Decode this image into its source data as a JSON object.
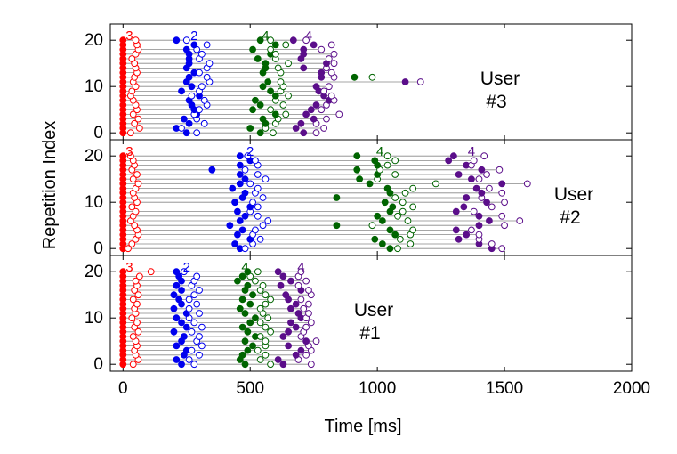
{
  "chart_data": {
    "type": "scatter",
    "xlabel": "Time [ms]",
    "ylabel": "Repetition Index",
    "xlim": [
      -50,
      2000
    ],
    "xticks": [
      0,
      500,
      1000,
      1500,
      2000
    ],
    "ylim": [
      -1.5,
      23.5
    ],
    "yticks": [
      0,
      10,
      20
    ],
    "grid": false,
    "stage_colors": {
      "3": "#ff0000",
      "2": "#0000ee",
      "4": "#006400",
      "4b": "#5b0e8a"
    },
    "panels": [
      {
        "user": "User\n#3",
        "user_lines": [
          "User",
          "#3"
        ],
        "stage_labels": [
          {
            "text": "3",
            "x": 25,
            "color": "#ff0000"
          },
          {
            "text": "2",
            "x": 280,
            "color": "#0000ee"
          },
          {
            "text": "4",
            "x": 560,
            "color": "#006400"
          },
          {
            "text": "4",
            "x": 730,
            "color": "#5b0e8a"
          }
        ],
        "stages": [
          "3",
          "2",
          "4",
          "4b"
        ],
        "rows": [
          [
            0,
            30,
            250,
            290,
            540,
            590,
            710,
            760
          ],
          [
            0,
            65,
            210,
            230,
            500,
            560,
            680,
            790
          ],
          [
            0,
            45,
            260,
            320,
            560,
            600,
            700,
            760
          ],
          [
            0,
            60,
            240,
            290,
            550,
            610,
            750,
            800
          ],
          [
            0,
            40,
            290,
            280,
            600,
            640,
            720,
            850
          ],
          [
            0,
            55,
            280,
            300,
            510,
            580,
            740,
            780
          ],
          [
            0,
            50,
            270,
            330,
            540,
            630,
            760,
            800
          ],
          [
            0,
            40,
            260,
            320,
            520,
            600,
            810,
            830
          ],
          [
            0,
            30,
            300,
            270,
            600,
            650,
            790,
            820
          ],
          [
            0,
            35,
            230,
            300,
            580,
            620,
            770,
            790
          ],
          [
            0,
            50,
            270,
            310,
            550,
            630,
            760,
            810
          ],
          [
            0,
            40,
            250,
            340,
            570,
            620,
            1110,
            1170
          ],
          [
            0,
            45,
            260,
            330,
            910,
            980,
            780,
            830
          ],
          [
            0,
            55,
            280,
            300,
            550,
            620,
            780,
            820
          ],
          [
            0,
            50,
            250,
            330,
            560,
            610,
            710,
            800
          ],
          [
            0,
            45,
            260,
            340,
            560,
            650,
            800,
            830
          ],
          [
            0,
            35,
            260,
            300,
            530,
            600,
            700,
            810
          ],
          [
            0,
            50,
            260,
            310,
            580,
            600,
            710,
            830
          ],
          [
            0,
            60,
            250,
            290,
            510,
            580,
            710,
            780
          ],
          [
            0,
            55,
            280,
            330,
            600,
            640,
            750,
            820
          ],
          [
            0,
            50,
            210,
            250,
            540,
            580,
            670,
            720
          ]
        ]
      },
      {
        "user": "User\n#2",
        "user_lines": [
          "User",
          "#2"
        ],
        "stage_labels": [
          {
            "text": "3",
            "x": 25,
            "color": "#ff0000"
          },
          {
            "text": "2",
            "x": 500,
            "color": "#0000ee"
          },
          {
            "text": "4",
            "x": 1010,
            "color": "#006400"
          },
          {
            "text": "4",
            "x": 1370,
            "color": "#5b0e8a"
          }
        ],
        "stages": [
          "3",
          "2",
          "4",
          "4b"
        ],
        "rows": [
          [
            0,
            20,
            460,
            480,
            1050,
            1080,
            1450,
            1490
          ],
          [
            0,
            35,
            440,
            510,
            1020,
            1130,
            1400,
            1450
          ],
          [
            0,
            50,
            500,
            540,
            990,
            1090,
            1320,
            1400
          ],
          [
            0,
            60,
            450,
            510,
            1070,
            1130,
            1350,
            1400
          ],
          [
            0,
            55,
            470,
            520,
            1050,
            1140,
            1310,
            1370
          ],
          [
            0,
            45,
            420,
            550,
            840,
            980,
            1400,
            1500
          ],
          [
            0,
            30,
            460,
            570,
            1020,
            1120,
            1440,
            1560
          ],
          [
            0,
            40,
            480,
            530,
            1000,
            1080,
            1400,
            1490
          ],
          [
            0,
            50,
            450,
            500,
            1050,
            1100,
            1310,
            1380
          ],
          [
            0,
            35,
            500,
            530,
            1060,
            1140,
            1340,
            1450
          ],
          [
            0,
            55,
            440,
            510,
            1030,
            1100,
            1430,
            1500
          ],
          [
            0,
            45,
            470,
            550,
            840,
            1070,
            1350,
            1410
          ],
          [
            0,
            40,
            480,
            520,
            1050,
            1110,
            1410,
            1490
          ],
          [
            0,
            50,
            430,
            530,
            1040,
            1140,
            1390,
            1440
          ],
          [
            0,
            60,
            460,
            500,
            970,
            1230,
            1490,
            1590
          ],
          [
            0,
            40,
            480,
            560,
            930,
            1000,
            1370,
            1400
          ],
          [
            0,
            55,
            460,
            530,
            1000,
            1070,
            1320,
            1430
          ],
          [
            0,
            35,
            350,
            480,
            920,
            1010,
            1410,
            1480
          ],
          [
            0,
            45,
            460,
            530,
            1000,
            1040,
            1350,
            1370
          ],
          [
            0,
            40,
            500,
            520,
            990,
            1070,
            1280,
            1380
          ],
          [
            0,
            30,
            460,
            490,
            920,
            1040,
            1300,
            1420
          ]
        ]
      },
      {
        "user": "User\n#1",
        "user_lines": [
          "User",
          "#1"
        ],
        "stage_labels": [
          {
            "text": "3",
            "x": 25,
            "color": "#ff0000"
          },
          {
            "text": "2",
            "x": 250,
            "color": "#0000ee"
          },
          {
            "text": "4",
            "x": 480,
            "color": "#006400"
          },
          {
            "text": "4",
            "x": 700,
            "color": "#5b0e8a"
          }
        ],
        "stages": [
          "3",
          "2",
          "4",
          "4b"
        ],
        "rows": [
          [
            0,
            40,
            230,
            280,
            480,
            580,
            630,
            740
          ],
          [
            0,
            60,
            210,
            260,
            460,
            540,
            610,
            690
          ],
          [
            0,
            50,
            240,
            300,
            470,
            560,
            680,
            720
          ],
          [
            0,
            45,
            250,
            270,
            490,
            530,
            700,
            740
          ],
          [
            0,
            55,
            210,
            310,
            510,
            560,
            650,
            730
          ],
          [
            0,
            50,
            230,
            290,
            480,
            560,
            720,
            760
          ],
          [
            0,
            40,
            240,
            300,
            520,
            540,
            630,
            700
          ],
          [
            0,
            60,
            200,
            270,
            490,
            580,
            650,
            710
          ],
          [
            0,
            45,
            250,
            310,
            470,
            560,
            680,
            720
          ],
          [
            0,
            55,
            230,
            280,
            500,
            540,
            660,
            740
          ],
          [
            0,
            35,
            210,
            260,
            520,
            570,
            700,
            720
          ],
          [
            0,
            50,
            250,
            300,
            480,
            550,
            690,
            730
          ],
          [
            0,
            45,
            200,
            260,
            460,
            540,
            660,
            710
          ],
          [
            0,
            55,
            230,
            290,
            500,
            560,
            680,
            730
          ],
          [
            0,
            40,
            220,
            260,
            470,
            580,
            650,
            700
          ],
          [
            0,
            60,
            200,
            280,
            510,
            560,
            640,
            740
          ],
          [
            0,
            45,
            230,
            300,
            480,
            540,
            700,
            730
          ],
          [
            0,
            55,
            210,
            270,
            490,
            550,
            620,
            690
          ],
          [
            0,
            50,
            230,
            280,
            450,
            520,
            660,
            720
          ],
          [
            0,
            65,
            220,
            290,
            470,
            500,
            630,
            690
          ],
          [
            0,
            110,
            210,
            240,
            490,
            530,
            610,
            700
          ]
        ]
      }
    ]
  }
}
